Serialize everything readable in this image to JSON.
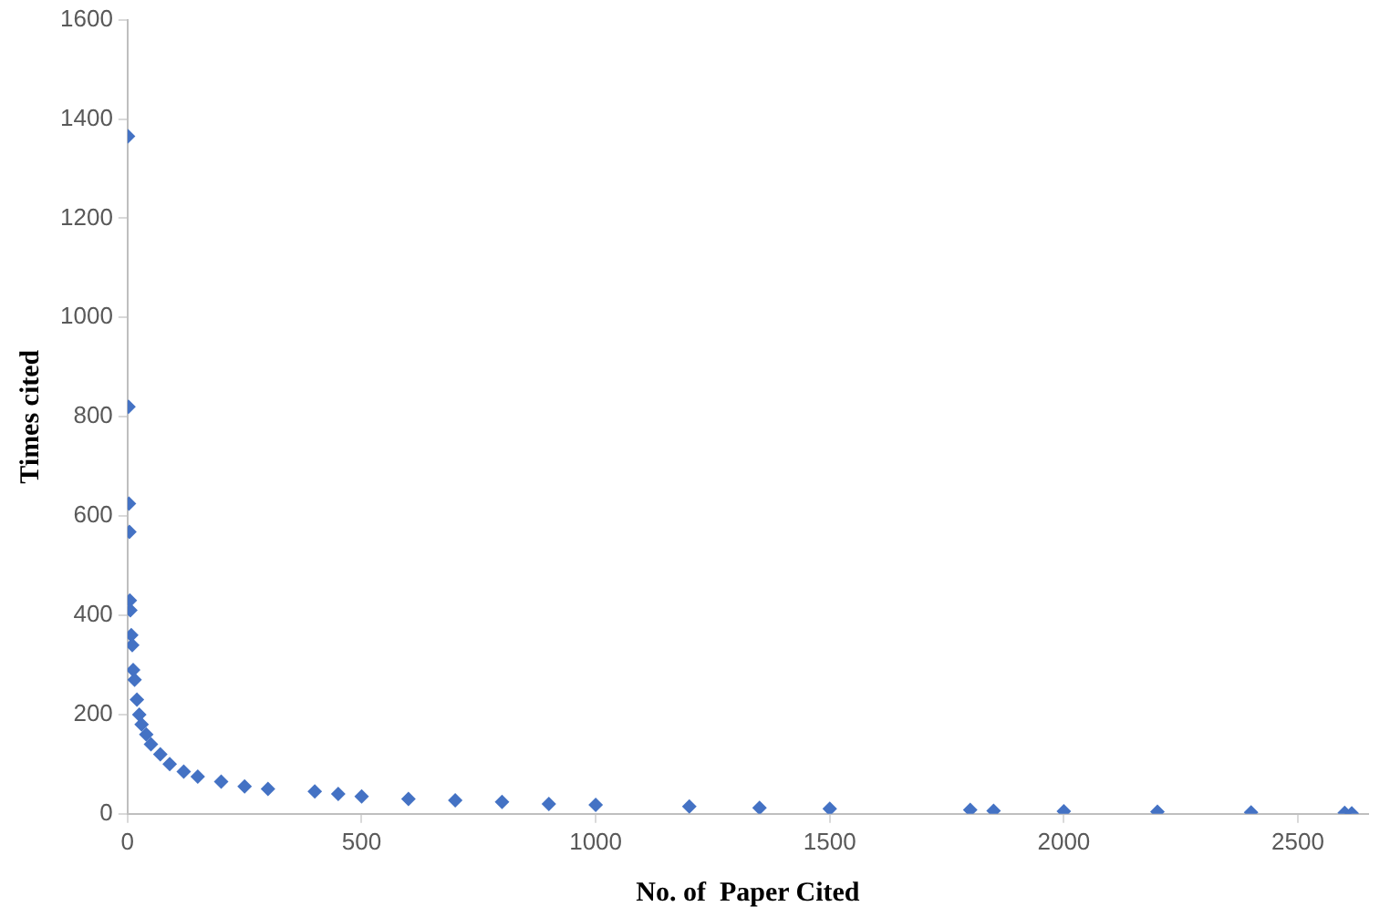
{
  "chart_data": {
    "type": "scatter",
    "xlabel": "No. of  Paper Cited",
    "ylabel": "Times cited",
    "marker": "diamond",
    "grid": false,
    "legend": false,
    "xlim": [
      0,
      2650
    ],
    "xticks": [
      0,
      500,
      1000,
      1500,
      2000,
      2500
    ],
    "ylim": [
      0,
      1600
    ],
    "yticks": [
      0,
      200,
      400,
      600,
      800,
      1000,
      1200,
      1400,
      1600
    ],
    "series": [
      {
        "color": "#4472c4",
        "x": [
          1,
          2,
          3,
          4,
          5,
          6,
          8,
          10,
          12,
          15,
          20,
          25,
          30,
          40,
          50,
          70,
          90,
          120,
          150,
          200,
          250,
          300,
          400,
          450,
          500,
          600,
          700,
          800,
          900,
          1000,
          1200,
          1350,
          1500,
          1800,
          1850,
          2000,
          2200,
          2400,
          2600,
          2615
        ],
        "values": [
          1365,
          820,
          625,
          568,
          430,
          410,
          360,
          340,
          290,
          270,
          230,
          200,
          180,
          160,
          140,
          120,
          100,
          85,
          75,
          65,
          55,
          50,
          45,
          40,
          35,
          30,
          27,
          24,
          20,
          18,
          15,
          12,
          10,
          8,
          6,
          5,
          4,
          3,
          2,
          1
        ]
      }
    ]
  }
}
